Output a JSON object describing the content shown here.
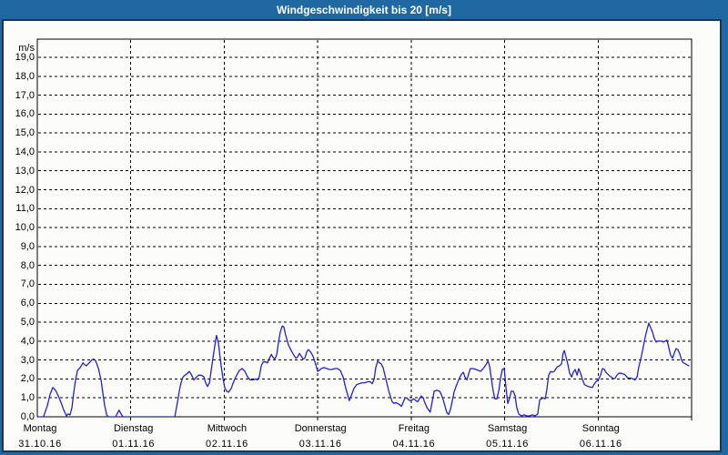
{
  "window": {
    "title": "Windgeschwindigkeit bis 20 [m/s]"
  },
  "colors": {
    "frame_blue": "#2068A2",
    "frame_navy": "#16365C",
    "plot_background": "#FCFDFB",
    "grid": "#000000",
    "text": "#000000",
    "series_line": "#2222CC",
    "title_text": "#FFFFFF"
  },
  "chart_data": {
    "type": "line",
    "title": "Windgeschwindigkeit bis 20 [m/s]",
    "ylabel": "m/s",
    "ylim": [
      0,
      20
    ],
    "y_tick_step": 1.0,
    "y_tick_labels": [
      "0,0",
      "1,0",
      "2,0",
      "3,0",
      "4,0",
      "5,0",
      "6,0",
      "7,0",
      "8,0",
      "9,0",
      "10,0",
      "11,0",
      "12,0",
      "13,0",
      "14,0",
      "15,0",
      "16,0",
      "17,0",
      "18,0",
      "19,0"
    ],
    "grid": true,
    "legend": "none",
    "x_days": [
      {
        "label": "Montag",
        "date": "31.10.16"
      },
      {
        "label": "Dienstag",
        "date": "01.11.16"
      },
      {
        "label": "Mittwoch",
        "date": "02.11.16"
      },
      {
        "label": "Donnerstag",
        "date": "03.11.16"
      },
      {
        "label": "Freitag",
        "date": "04.11.16"
      },
      {
        "label": "Samstag",
        "date": "05.11.16"
      },
      {
        "label": "Sonntag",
        "date": "06.11.16"
      }
    ],
    "x_range_hours": [
      0,
      168
    ],
    "series": [
      {
        "name": "Windgeschwindigkeit",
        "unit": "m/s",
        "color": "#2222CC",
        "points": [
          [
            0,
            0
          ],
          [
            1.6,
            0
          ],
          [
            2.6,
            0.6
          ],
          [
            3.3,
            1.2
          ],
          [
            4,
            1.55
          ],
          [
            4.7,
            1.4
          ],
          [
            5.4,
            1.1
          ],
          [
            6.1,
            0.75
          ],
          [
            6.8,
            0.35
          ],
          [
            7.5,
            0.05
          ],
          [
            7.9,
            0.15
          ],
          [
            8.4,
            0.1
          ],
          [
            8.9,
            0.5
          ],
          [
            9.3,
            1.2
          ],
          [
            9.8,
            1.9
          ],
          [
            10.3,
            2.45
          ],
          [
            11,
            2.6
          ],
          [
            11.7,
            2.85
          ],
          [
            12.2,
            2.75
          ],
          [
            12.6,
            2.7
          ],
          [
            13.3,
            2.85
          ],
          [
            14,
            3
          ],
          [
            14.5,
            3.05
          ],
          [
            15,
            2.95
          ],
          [
            15.7,
            2.55
          ],
          [
            16.4,
            1.9
          ],
          [
            16.8,
            1.3
          ],
          [
            17.3,
            0.6
          ],
          [
            17.8,
            0.1
          ],
          [
            18.2,
            0
          ],
          [
            20.1,
            0
          ],
          [
            20.6,
            0.2
          ],
          [
            21,
            0.35
          ],
          [
            21.5,
            0.15
          ],
          [
            22,
            0
          ],
          [
            35.3,
            0
          ],
          [
            36,
            0.8
          ],
          [
            36.5,
            1.4
          ],
          [
            36.9,
            1.8
          ],
          [
            37.4,
            2.1
          ],
          [
            37.9,
            2.2
          ],
          [
            38.6,
            2.3
          ],
          [
            39,
            2.4
          ],
          [
            39.5,
            2.25
          ],
          [
            40.2,
            1.95
          ],
          [
            40.9,
            2.1
          ],
          [
            41.4,
            2.2
          ],
          [
            42.1,
            2.2
          ],
          [
            42.8,
            2.1
          ],
          [
            43.2,
            1.8
          ],
          [
            43.7,
            1.6
          ],
          [
            44.2,
            1.8
          ],
          [
            44.6,
            2.4
          ],
          [
            45.1,
            3.1
          ],
          [
            45.6,
            3.8
          ],
          [
            46,
            4.3
          ],
          [
            46.5,
            3.9
          ],
          [
            47.2,
            2.7
          ],
          [
            47.7,
            2
          ],
          [
            48.1,
            1.55
          ],
          [
            48.6,
            1.35
          ],
          [
            49.1,
            1.3
          ],
          [
            49.8,
            1.5
          ],
          [
            50.5,
            1.9
          ],
          [
            51.2,
            2.2
          ],
          [
            51.9,
            2.45
          ],
          [
            52.6,
            2.55
          ],
          [
            53.3,
            2.4
          ],
          [
            54,
            2.1
          ],
          [
            54.7,
            1.95
          ],
          [
            55.4,
            1.95
          ],
          [
            56.1,
            2
          ],
          [
            56.5,
            1.95
          ],
          [
            57,
            2.1
          ],
          [
            57.5,
            2.7
          ],
          [
            58,
            2.9
          ],
          [
            58.7,
            2.9
          ],
          [
            59.1,
            2.85
          ],
          [
            59.6,
            3.1
          ],
          [
            60.1,
            3.3
          ],
          [
            60.5,
            3.15
          ],
          [
            61,
            3.05
          ],
          [
            61.5,
            3.3
          ],
          [
            61.9,
            3.9
          ],
          [
            62.4,
            4.5
          ],
          [
            62.9,
            4.8
          ],
          [
            63.3,
            4.75
          ],
          [
            63.8,
            4.3
          ],
          [
            64.5,
            3.8
          ],
          [
            65.2,
            3.5
          ],
          [
            65.9,
            3.25
          ],
          [
            66.4,
            3.1
          ],
          [
            66.8,
            3.15
          ],
          [
            67.3,
            3.35
          ],
          [
            67.8,
            3.2
          ],
          [
            68.2,
            3.05
          ],
          [
            68.7,
            3.1
          ],
          [
            69.2,
            3.45
          ],
          [
            69.6,
            3.55
          ],
          [
            70.1,
            3.45
          ],
          [
            70.8,
            3.2
          ],
          [
            71.5,
            2.75
          ],
          [
            72,
            2.4
          ],
          [
            72.4,
            2.45
          ],
          [
            72.9,
            2.55
          ],
          [
            73.6,
            2.6
          ],
          [
            74.3,
            2.55
          ],
          [
            75,
            2.5
          ],
          [
            75.7,
            2.5
          ],
          [
            76.4,
            2.55
          ],
          [
            77.1,
            2.55
          ],
          [
            77.8,
            2.45
          ],
          [
            78.5,
            2.1
          ],
          [
            79.2,
            1.5
          ],
          [
            79.7,
            1.15
          ],
          [
            80.1,
            0.85
          ],
          [
            80.6,
            1.1
          ],
          [
            81.3,
            1.5
          ],
          [
            82,
            1.7
          ],
          [
            82.7,
            1.75
          ],
          [
            83.4,
            1.8
          ],
          [
            84.1,
            1.8
          ],
          [
            84.8,
            1.85
          ],
          [
            85.5,
            1.85
          ],
          [
            86,
            1.75
          ],
          [
            86.5,
            2
          ],
          [
            86.9,
            2.6
          ],
          [
            87.4,
            2.95
          ],
          [
            87.9,
            2.85
          ],
          [
            88.3,
            2.8
          ],
          [
            88.8,
            2.6
          ],
          [
            89.5,
            2
          ],
          [
            90.2,
            1.4
          ],
          [
            90.7,
            1.05
          ],
          [
            91.1,
            0.8
          ],
          [
            91.6,
            0.7
          ],
          [
            92.1,
            0.75
          ],
          [
            92.5,
            0.7
          ],
          [
            93,
            0.65
          ],
          [
            93.5,
            0.55
          ],
          [
            93.9,
            0.75
          ],
          [
            94.4,
            1
          ],
          [
            94.9,
            1
          ],
          [
            95.3,
            0.9
          ],
          [
            95.8,
            0.85
          ],
          [
            96.3,
            0.9
          ],
          [
            96.7,
            0.95
          ],
          [
            97.2,
            0.85
          ],
          [
            97.7,
            0.8
          ],
          [
            98.1,
            0.95
          ],
          [
            98.6,
            1.1
          ],
          [
            99.1,
            1
          ],
          [
            99.5,
            0.75
          ],
          [
            100,
            0.5
          ],
          [
            100.5,
            0.35
          ],
          [
            100.9,
            0.25
          ],
          [
            101.9,
            1.35
          ],
          [
            102.6,
            1.4
          ],
          [
            103.3,
            1.35
          ],
          [
            103.7,
            1.2
          ],
          [
            104.2,
            0.9
          ],
          [
            104.7,
            0.55
          ],
          [
            105.1,
            0.25
          ],
          [
            105.6,
            0.12
          ],
          [
            106.1,
            0.4
          ],
          [
            106.5,
            0.8
          ],
          [
            107,
            1.3
          ],
          [
            107.5,
            1.6
          ],
          [
            108,
            1.85
          ],
          [
            108.4,
            2.05
          ],
          [
            108.9,
            2.25
          ],
          [
            109.4,
            2.35
          ],
          [
            109.8,
            2.1
          ],
          [
            110.3,
            1.95
          ],
          [
            110.8,
            2.3
          ],
          [
            111.2,
            2.55
          ],
          [
            111.9,
            2.55
          ],
          [
            112.6,
            2.5
          ],
          [
            113.3,
            2.45
          ],
          [
            113.8,
            2.4
          ],
          [
            114.3,
            2.5
          ],
          [
            114.7,
            2.6
          ],
          [
            115.2,
            2.75
          ],
          [
            115.7,
            2.95
          ],
          [
            116.1,
            2.7
          ],
          [
            116.6,
            2
          ],
          [
            117.1,
            1.3
          ],
          [
            117.5,
            0.95
          ],
          [
            118,
            0.95
          ],
          [
            118.5,
            1.4
          ],
          [
            118.9,
            2
          ],
          [
            119.4,
            2.5
          ],
          [
            119.9,
            2.55
          ],
          [
            120.3,
            1.6
          ],
          [
            120.8,
            0.7
          ],
          [
            121.3,
            1
          ],
          [
            121.7,
            1.35
          ],
          [
            122.2,
            1.35
          ],
          [
            122.7,
            1.1
          ],
          [
            123.1,
            0.5
          ],
          [
            123.6,
            0.15
          ],
          [
            124.3,
            0.05
          ],
          [
            125,
            0.1
          ],
          [
            125.7,
            0.05
          ],
          [
            126.4,
            0.05
          ],
          [
            127.1,
            0.1
          ],
          [
            127.8,
            0.05
          ],
          [
            128.5,
            0.15
          ],
          [
            129,
            0.9
          ],
          [
            129.4,
            0.95
          ],
          [
            129.9,
            1
          ],
          [
            130.4,
            0.95
          ],
          [
            130.8,
            1.4
          ],
          [
            131.3,
            2.2
          ],
          [
            131.8,
            2.4
          ],
          [
            132.2,
            2.35
          ],
          [
            132.7,
            2.4
          ],
          [
            133.2,
            2.55
          ],
          [
            133.6,
            2.65
          ],
          [
            134.1,
            2.7
          ],
          [
            134.6,
            2.8
          ],
          [
            135,
            3.35
          ],
          [
            135.3,
            3.5
          ],
          [
            135.7,
            3.2
          ],
          [
            136.2,
            2.8
          ],
          [
            136.7,
            2.3
          ],
          [
            137.2,
            2.1
          ],
          [
            137.6,
            2.35
          ],
          [
            138.1,
            2.5
          ],
          [
            138.6,
            2.2
          ],
          [
            139,
            2.55
          ],
          [
            139.5,
            2.3
          ],
          [
            140,
            1.95
          ],
          [
            140.5,
            1.7
          ],
          [
            141.4,
            1.6
          ],
          [
            142.5,
            1.55
          ],
          [
            143.2,
            1.8
          ],
          [
            143.7,
            1.9
          ],
          [
            144.2,
            2
          ],
          [
            144.6,
            2.2
          ],
          [
            145.1,
            2.55
          ],
          [
            145.6,
            2.5
          ],
          [
            146,
            2.35
          ],
          [
            146.5,
            2.25
          ],
          [
            147,
            2.15
          ],
          [
            147.4,
            2.1
          ],
          [
            147.9,
            2
          ],
          [
            148.4,
            2.05
          ],
          [
            148.8,
            2.2
          ],
          [
            149.3,
            2.3
          ],
          [
            150,
            2.3
          ],
          [
            150.7,
            2.25
          ],
          [
            151.2,
            2.15
          ],
          [
            151.6,
            2.05
          ],
          [
            152.3,
            2.05
          ],
          [
            153,
            2
          ],
          [
            153.5,
            1.95
          ],
          [
            154,
            2.1
          ],
          [
            154.4,
            2.6
          ],
          [
            154.9,
            3
          ],
          [
            155.4,
            3.5
          ],
          [
            155.9,
            4
          ],
          [
            156.3,
            4.4
          ],
          [
            156.8,
            4.8
          ],
          [
            157,
            4.95
          ],
          [
            157.5,
            4.7
          ],
          [
            158,
            4.45
          ],
          [
            158.4,
            4.15
          ],
          [
            158.9,
            3.95
          ],
          [
            159.4,
            4
          ],
          [
            160.1,
            4
          ],
          [
            160.8,
            3.95
          ],
          [
            161.2,
            4
          ],
          [
            161.7,
            4.05
          ],
          [
            162.2,
            3.6
          ],
          [
            162.6,
            3.25
          ],
          [
            163.1,
            3.1
          ],
          [
            163.6,
            3.4
          ],
          [
            164,
            3.6
          ],
          [
            164.5,
            3.55
          ],
          [
            165,
            3.3
          ],
          [
            165.4,
            3
          ],
          [
            165.9,
            2.85
          ],
          [
            166.4,
            2.8
          ],
          [
            166.8,
            2.75
          ],
          [
            167.3,
            2.7
          ]
        ]
      }
    ]
  }
}
